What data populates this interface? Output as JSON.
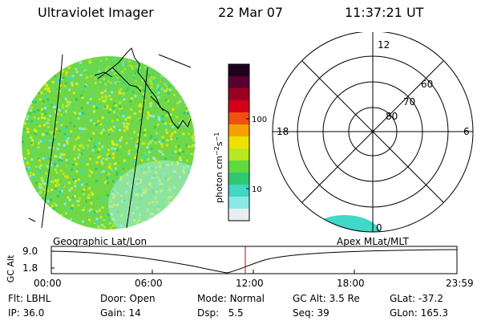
{
  "header": {
    "instrument": "Ultraviolet Imager",
    "date": "22 Mar 07",
    "time": "11:37:21 UT"
  },
  "colorbar": {
    "label": "photon cm-2s-1",
    "label_text": "photon cm",
    "label_sup1": "−2",
    "label_mid": "s",
    "label_sup2": "−1",
    "ticks": [
      "100",
      "10"
    ],
    "colors": [
      "#200020",
      "#5a0030",
      "#9a0020",
      "#d40018",
      "#f05010",
      "#f8a000",
      "#f0e000",
      "#b8e820",
      "#60d840",
      "#30c870",
      "#40d8c0",
      "#8ce8e8",
      "#e6eef0"
    ]
  },
  "polar": {
    "lat_labels": [
      "80",
      "70",
      "60"
    ],
    "mlt_labels": {
      "top": "12",
      "left": "18",
      "right": "6",
      "bottom": "0"
    }
  },
  "timeline": {
    "left_label": "Geographic Lat/Lon",
    "right_label": "Apex MLat/MLT",
    "ylabel": "GC Alt",
    "y_ticks": [
      "9.0",
      "1.8"
    ],
    "x_ticks": [
      "00:00",
      "06:00",
      "12:00",
      "18:00",
      "23:59"
    ],
    "marker_time": "11:37:21",
    "marker_color": "#c00000"
  },
  "footer": {
    "row1": [
      {
        "label": "Flt:",
        "value": "LBHL"
      },
      {
        "label": "Door:",
        "value": "Open"
      },
      {
        "label": "Mode:",
        "value": "Normal"
      },
      {
        "label": "GC Alt:",
        "value": "3.5 Re"
      },
      {
        "label": "GLat:",
        "value": "-37.2"
      }
    ],
    "row2": [
      {
        "label": "IP:",
        "value": "36.0"
      },
      {
        "label": "Gain:",
        "value": "14"
      },
      {
        "label": "Dsp:",
        "value": "5.5"
      },
      {
        "label": "Seq:",
        "value": "39"
      },
      {
        "label": "GLon:",
        "value": "165.3"
      }
    ]
  }
}
